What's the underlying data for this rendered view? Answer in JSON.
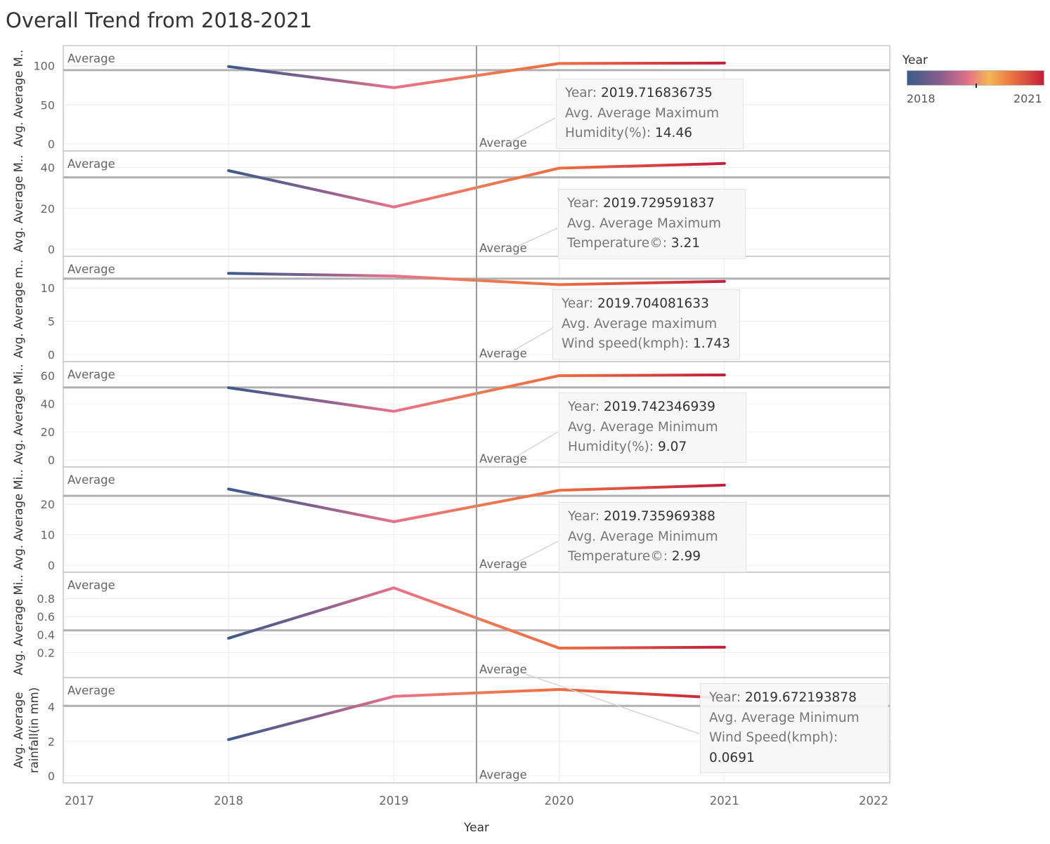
{
  "title": "Overall Trend from 2018-2021",
  "legend": {
    "title": "Year",
    "min_label": "2018",
    "max_label": "2021"
  },
  "colors": {
    "2018": "#3d5a89",
    "2019": "#e8718b",
    "2020": "#ec6e43",
    "2021": "#c21e3d",
    "reference_line": "#b0b0b0",
    "grid": "#ececec"
  },
  "chart_data": {
    "type": "line",
    "xlabel": "Year",
    "x_ticks": [
      "2017",
      "2018",
      "2019",
      "2020",
      "2021",
      "2022"
    ],
    "xlim": [
      2017,
      2022
    ],
    "x": [
      2018,
      2019,
      2020,
      2021
    ],
    "reference_label": "Average",
    "panels": [
      {
        "ylabel": "Avg. Average M..",
        "ylim": [
          0,
          115
        ],
        "y_ticks": [
          0,
          50,
          100
        ],
        "values": [
          99,
          72,
          103,
          103.5
        ],
        "average": 94.4,
        "tooltip": {
          "year_label": "Year:",
          "year_value": "2019.716836735",
          "measure_lines": [
            "Avg. Average Maximum",
            "Humidity(%):"
          ],
          "measure_value": "14.46"
        }
      },
      {
        "ylabel": "Avg. Average M..",
        "ylim": [
          0,
          44
        ],
        "y_ticks": [
          0,
          20,
          40
        ],
        "values": [
          38.5,
          20.7,
          39.7,
          42
        ],
        "average": 35.2,
        "tooltip": {
          "year_label": "Year:",
          "year_value": "2019.729591837",
          "measure_lines": [
            "Avg. Average Maximum",
            "Temperature©:"
          ],
          "measure_value": "3.21"
        }
      },
      {
        "ylabel": "Avg. Average m..",
        "ylim": [
          0,
          13.5
        ],
        "y_ticks": [
          0,
          5,
          10
        ],
        "values": [
          12.2,
          11.8,
          10.5,
          11
        ],
        "average": 11.4,
        "tooltip": {
          "year_label": "Year:",
          "year_value": "2019.704081633",
          "measure_lines": [
            "Avg. Average maximum",
            "Wind speed(kmph):"
          ],
          "measure_value": "1.743"
        }
      },
      {
        "ylabel": "Avg. Average Mi..",
        "ylim": [
          0,
          64
        ],
        "y_ticks": [
          0,
          20,
          40,
          60
        ],
        "values": [
          51.4,
          34.6,
          60,
          60.5
        ],
        "average": 51.6,
        "tooltip": {
          "year_label": "Year:",
          "year_value": "2019.742346939",
          "measure_lines": [
            "Avg. Average Minimum",
            "Humidity(%):"
          ],
          "measure_value": "9.07"
        }
      },
      {
        "ylabel": "Avg. Average Mi..",
        "ylim": [
          0,
          29.5
        ],
        "y_ticks": [
          0,
          10,
          20
        ],
        "values": [
          25,
          14.3,
          24.6,
          26.3
        ],
        "average": 22.8,
        "tooltip": {
          "year_label": "Year:",
          "year_value": "2019.735969388",
          "measure_lines": [
            "Avg. Average Minimum",
            "Temperature©:"
          ],
          "measure_value": "2.99"
        }
      },
      {
        "ylabel": "Avg. Average Mi..",
        "ylim": [
          0,
          1.0
        ],
        "y_ticks": [
          0.2,
          0.4,
          0.6,
          0.8
        ],
        "values": [
          0.36,
          0.92,
          0.25,
          0.26
        ],
        "average": 0.447,
        "tooltip": {
          "year_label": "Year:",
          "year_value": "2019.672193878",
          "measure_lines": [
            "Avg. Average Minimum",
            "Wind Speed(kmph):"
          ],
          "measure_value": "0.0691"
        }
      },
      {
        "ylabel": "Avg. Average rainfall(in mm)",
        "ylabel_lines": [
          "Avg. Average",
          "rainfall(in mm)"
        ],
        "ylim": [
          0,
          5.2
        ],
        "y_ticks": [
          0,
          2,
          4
        ],
        "values": [
          2.1,
          4.6,
          5.0,
          4.5
        ],
        "average": 4.05
      }
    ],
    "x_reference": {
      "value": 2019.5,
      "label": "Average"
    },
    "grid": true,
    "legend_position": "top-right"
  }
}
